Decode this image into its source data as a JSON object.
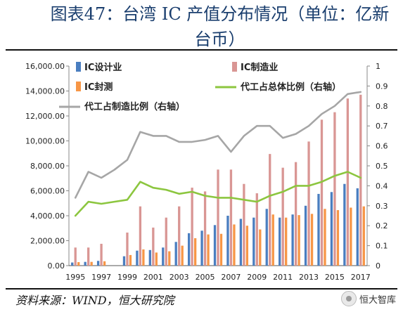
{
  "header": {
    "title": "图表47：台湾 IC 产值分布情况（单位：亿新台币）"
  },
  "footer": {
    "source": "资料来源：WIND，恒大研究院",
    "watermark": "恒大智库"
  },
  "chart_data": {
    "type": "bar",
    "title": "图表47：台湾 IC 产值分布情况（单位：亿新台币）",
    "categories": [
      "1995",
      "1996",
      "1997",
      "1998",
      "1999",
      "2000",
      "2001",
      "2002",
      "2003",
      "2004",
      "2005",
      "2006",
      "2007",
      "2008",
      "2009",
      "2010",
      "2011",
      "2012",
      "2013",
      "2014",
      "2015",
      "2016",
      "2017"
    ],
    "x_tick_labels": [
      "1995",
      "1997",
      "1999",
      "2001",
      "2003",
      "2005",
      "2007",
      "2009",
      "2011",
      "2013",
      "2015",
      "2017"
    ],
    "y_left": {
      "range": [
        0,
        16000
      ],
      "ticks": [
        "0.00",
        "2,000.00",
        "4,000.00",
        "6,000.00",
        "8,000.00",
        "10,000.00",
        "12,000.00",
        "14,000.00",
        "16,000.00"
      ]
    },
    "y_right": {
      "range": [
        0,
        1
      ],
      "ticks": [
        "0",
        "0.1",
        "0.2",
        "0.3",
        "0.4",
        "0.5",
        "0.6",
        "0.7",
        "0.8",
        "0.9",
        "1"
      ]
    },
    "legend_placement": "top",
    "series": [
      {
        "name": "IC设计业",
        "kind": "bar",
        "axis": "left",
        "color": "#4a7ec0",
        "values": [
          250,
          300,
          380,
          null,
          750,
          1200,
          1250,
          1450,
          1900,
          2600,
          2800,
          3250,
          4000,
          3750,
          3850,
          4550,
          3850,
          4100,
          4800,
          5750,
          5900,
          6550,
          6200
        ]
      },
      {
        "name": "IC制造业",
        "kind": "bar",
        "axis": "left",
        "color": "#d99694",
        "values": [
          1450,
          1450,
          1750,
          null,
          2650,
          4750,
          3050,
          3850,
          4750,
          6250,
          5950,
          7700,
          7700,
          6550,
          5800,
          8950,
          7850,
          8300,
          9950,
          11700,
          12300,
          13400,
          13700
        ]
      },
      {
        "name": "IC封测",
        "kind": "bar",
        "axis": "left",
        "color": "#f79646",
        "values": [
          280,
          300,
          350,
          null,
          850,
          1300,
          1050,
          1150,
          1600,
          2200,
          2500,
          2550,
          3300,
          3200,
          2900,
          4100,
          3850,
          4050,
          4150,
          4550,
          4450,
          4650,
          4750
        ]
      },
      {
        "name": "代工占总体比例（右轴）",
        "kind": "line",
        "axis": "right",
        "color": "#8cc63f",
        "values": [
          0.25,
          0.32,
          0.31,
          0.32,
          0.33,
          0.42,
          0.39,
          0.38,
          0.36,
          0.37,
          0.35,
          0.34,
          0.34,
          0.33,
          0.32,
          0.35,
          0.37,
          0.4,
          0.4,
          0.42,
          0.45,
          0.47,
          0.44
        ]
      },
      {
        "name": "代工占制造比例（右轴）",
        "kind": "line",
        "axis": "right",
        "color": "#a6a6a6",
        "values": [
          0.34,
          0.47,
          0.44,
          0.48,
          0.53,
          0.67,
          0.65,
          0.65,
          0.62,
          0.62,
          0.63,
          0.65,
          0.57,
          0.65,
          0.7,
          0.7,
          0.64,
          0.66,
          0.7,
          0.76,
          0.8,
          0.86,
          0.87
        ]
      }
    ]
  }
}
